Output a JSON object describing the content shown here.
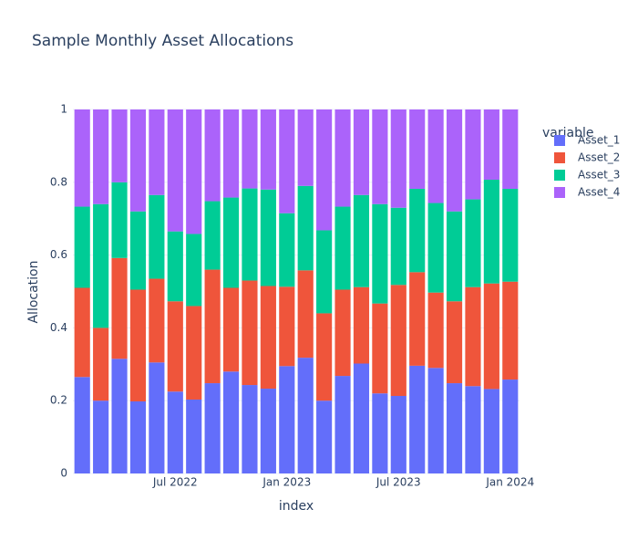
{
  "chart_data": {
    "type": "stacked_bar",
    "title": "Sample Monthly Asset Allocations",
    "x_label": "index",
    "y_label": "Allocation",
    "legend_title": "variable",
    "x": [
      "2022-02",
      "2022-03",
      "2022-04",
      "2022-05",
      "2022-06",
      "2022-07",
      "2022-08",
      "2022-09",
      "2022-10",
      "2022-11",
      "2022-12",
      "2023-01",
      "2023-02",
      "2023-03",
      "2023-04",
      "2023-05",
      "2023-06",
      "2023-07",
      "2023-08",
      "2023-09",
      "2023-10",
      "2023-11",
      "2023-12",
      "2024-01"
    ],
    "xticks": [
      {
        "value": "2022-07",
        "label": "Jul 2022"
      },
      {
        "value": "2023-01",
        "label": "Jan 2023"
      },
      {
        "value": "2023-07",
        "label": "Jul 2023"
      },
      {
        "value": "2024-01",
        "label": "Jan 2024"
      }
    ],
    "ylim": [
      0,
      1
    ],
    "yticks": [
      0,
      0.2,
      0.4,
      0.6,
      0.8,
      1
    ],
    "grid": true,
    "legend": "right",
    "series": [
      {
        "name": "Asset_1",
        "color": "#636efa",
        "values": [
          0.265,
          0.2,
          0.315,
          0.198,
          0.305,
          0.225,
          0.203,
          0.248,
          0.28,
          0.243,
          0.233,
          0.295,
          0.318,
          0.2,
          0.268,
          0.302,
          0.22,
          0.213,
          0.296,
          0.29,
          0.248,
          0.24,
          0.232,
          0.258
        ]
      },
      {
        "name": "Asset_2",
        "color": "#ef553b",
        "values": [
          0.245,
          0.2,
          0.277,
          0.307,
          0.23,
          0.248,
          0.257,
          0.312,
          0.23,
          0.287,
          0.282,
          0.218,
          0.24,
          0.24,
          0.237,
          0.21,
          0.247,
          0.305,
          0.257,
          0.207,
          0.225,
          0.272,
          0.29,
          0.269
        ]
      },
      {
        "name": "Asset_3",
        "color": "#00cc96",
        "values": [
          0.223,
          0.34,
          0.208,
          0.215,
          0.23,
          0.192,
          0.198,
          0.188,
          0.248,
          0.253,
          0.265,
          0.202,
          0.232,
          0.228,
          0.228,
          0.253,
          0.273,
          0.212,
          0.229,
          0.246,
          0.247,
          0.241,
          0.285,
          0.255
        ]
      },
      {
        "name": "Asset_4",
        "color": "#ab63fa",
        "values": [
          0.267,
          0.26,
          0.2,
          0.28,
          0.235,
          0.335,
          0.342,
          0.252,
          0.242,
          0.217,
          0.22,
          0.285,
          0.21,
          0.332,
          0.267,
          0.235,
          0.26,
          0.27,
          0.218,
          0.257,
          0.28,
          0.247,
          0.193,
          0.218
        ]
      }
    ]
  }
}
